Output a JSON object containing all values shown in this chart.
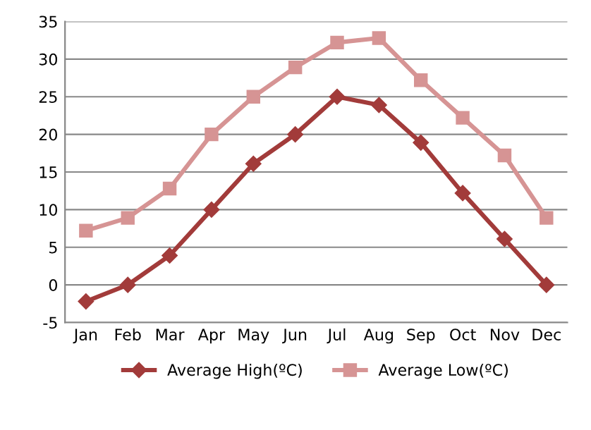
{
  "chart_data": {
    "type": "line",
    "categories": [
      "Jan",
      "Feb",
      "Mar",
      "Apr",
      "May",
      "Jun",
      "Jul",
      "Aug",
      "Sep",
      "Oct",
      "Nov",
      "Dec"
    ],
    "series": [
      {
        "name": "Average High(ºC)",
        "color": "#a23b3a",
        "marker": "diamond",
        "values": [
          -2.2,
          0,
          3.9,
          10,
          16.1,
          20,
          25,
          23.9,
          18.9,
          12.2,
          6.1,
          0
        ]
      },
      {
        "name": "Average Low(ºC)",
        "color": "#d69494",
        "marker": "square",
        "values": [
          7.2,
          8.9,
          12.8,
          20,
          25,
          28.9,
          32.2,
          32.8,
          27.2,
          22.2,
          17.2,
          8.9
        ]
      }
    ],
    "ylim": [
      -5,
      35
    ],
    "yticks": [
      -5,
      0,
      5,
      10,
      15,
      20,
      25,
      30,
      35
    ],
    "grid": "y",
    "legend": "bottom"
  }
}
